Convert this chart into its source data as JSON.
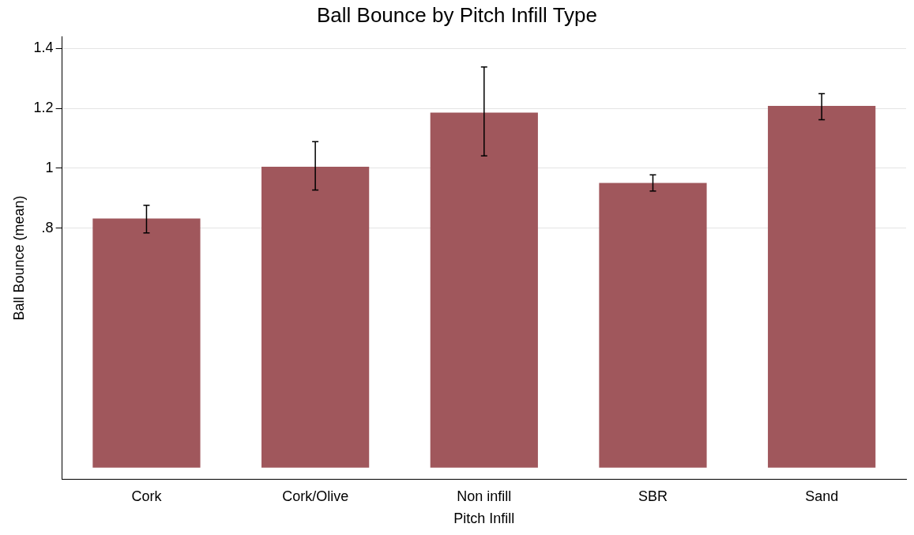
{
  "chart_data": {
    "type": "bar",
    "title": "Ball Bounce by Pitch Infill Type",
    "xlabel": "Pitch Infill",
    "ylabel": "Ball Bounce (mean)",
    "categories": [
      "Cork",
      "Cork/Olive",
      "Non infill",
      "SBR",
      "Sand"
    ],
    "values": [
      0.832,
      1.005,
      1.186,
      0.951,
      1.208
    ],
    "errors": [
      [
        0.784,
        0.876
      ],
      [
        0.927,
        1.089
      ],
      [
        1.041,
        1.338
      ],
      [
        0.924,
        0.978
      ],
      [
        1.162,
        1.249
      ]
    ],
    "color": "#a0575c",
    "ylim": [
      -0.04,
      1.44
    ],
    "yticks": [
      {
        "value": 0.8,
        "label": ".8"
      },
      1,
      1.2,
      1.4
    ],
    "grid": "y",
    "legend": false
  }
}
